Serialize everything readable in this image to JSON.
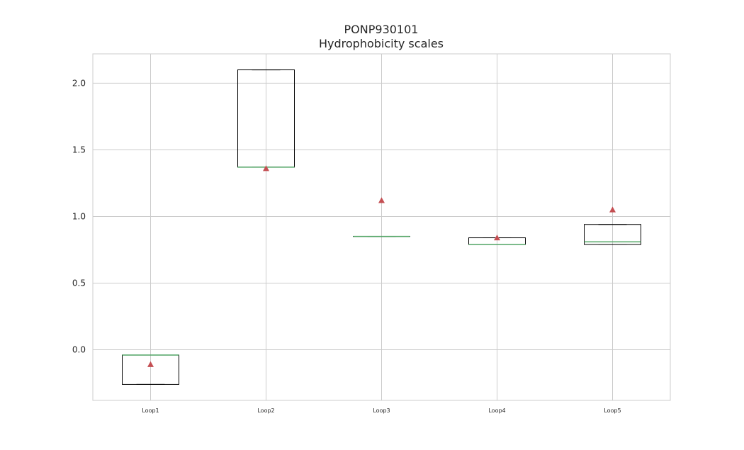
{
  "chart_data": {
    "type": "box",
    "title": "PONP930101",
    "subtitle": "Hydrophobicity scales",
    "xlabel": "",
    "ylabel": "",
    "categories": [
      "Loop1",
      "Loop2",
      "Loop3",
      "Loop4",
      "Loop5"
    ],
    "ylim": [
      -0.38,
      2.22
    ],
    "yticks": [
      0.0,
      0.5,
      1.0,
      1.5,
      2.0
    ],
    "ytick_labels": [
      "0.0",
      "0.5",
      "1.0",
      "1.5",
      "2.0"
    ],
    "grid": true,
    "boxes": [
      {
        "name": "Loop1",
        "q1": -0.26,
        "median": -0.04,
        "q3": -0.04,
        "whisker_low": -0.26,
        "whisker_high": -0.04,
        "mean": -0.11
      },
      {
        "name": "Loop2",
        "q1": 1.37,
        "median": 1.37,
        "q3": 2.1,
        "whisker_low": 1.37,
        "whisker_high": 2.1,
        "mean": 1.36
      },
      {
        "name": "Loop3",
        "q1": 0.85,
        "median": 0.85,
        "q3": 0.85,
        "whisker_low": 0.85,
        "whisker_high": 0.85,
        "mean": 1.12
      },
      {
        "name": "Loop4",
        "q1": 0.79,
        "median": 0.79,
        "q3": 0.84,
        "whisker_low": 0.79,
        "whisker_high": 0.84,
        "mean": 0.84
      },
      {
        "name": "Loop5",
        "q1": 0.79,
        "median": 0.81,
        "q3": 0.94,
        "whisker_low": 0.79,
        "whisker_high": 0.94,
        "mean": 1.05
      }
    ],
    "colors": {
      "box": "#000000",
      "median": "#55a868",
      "mean_marker": "#c44e52",
      "grid": "#cccccc",
      "axes": "#cccccc"
    }
  }
}
